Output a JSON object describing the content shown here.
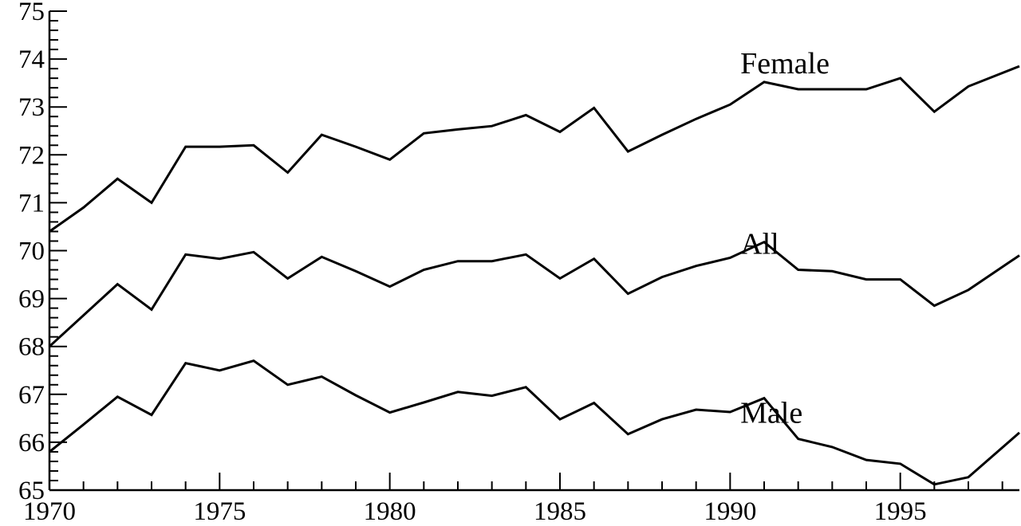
{
  "chart_data": {
    "type": "line",
    "title": "",
    "xlabel": "",
    "ylabel": "",
    "xlim": [
      1970,
      1998.5
    ],
    "ylim": [
      65,
      75
    ],
    "x_tick_labels": [
      "1970",
      "1975",
      "1980",
      "1985",
      "1990",
      "1995"
    ],
    "x_ticks": [
      1970,
      1975,
      1980,
      1985,
      1990,
      1995
    ],
    "y_tick_labels": [
      "65",
      "66",
      "67",
      "68",
      "69",
      "70",
      "71",
      "72",
      "73",
      "74",
      "75"
    ],
    "y_ticks": [
      65,
      66,
      67,
      68,
      69,
      70,
      71,
      72,
      73,
      74,
      75
    ],
    "grid": false,
    "x": [
      1970,
      1971,
      1972,
      1973,
      1974,
      1975,
      1976,
      1977,
      1978,
      1979,
      1980,
      1981,
      1982,
      1983,
      1984,
      1985,
      1986,
      1987,
      1988,
      1989,
      1990,
      1991,
      1992,
      1993,
      1994,
      1995,
      1996,
      1997,
      1998.5
    ],
    "series": [
      {
        "name": "Female",
        "values": [
          70.4,
          70.9,
          71.5,
          71.0,
          72.17,
          72.17,
          72.2,
          71.63,
          72.42,
          72.17,
          71.9,
          72.45,
          72.53,
          72.6,
          72.83,
          72.48,
          72.98,
          72.07,
          72.42,
          72.75,
          73.05,
          73.52,
          73.37,
          73.37,
          73.37,
          73.6,
          72.9,
          73.43,
          73.85
        ],
        "label_anchor": 1993
      },
      {
        "name": "All",
        "values": [
          68.0,
          68.65,
          69.3,
          68.77,
          69.92,
          69.83,
          69.97,
          69.42,
          69.87,
          69.57,
          69.25,
          69.6,
          69.78,
          69.78,
          69.92,
          69.42,
          69.83,
          69.1,
          69.45,
          69.68,
          69.85,
          70.18,
          69.6,
          69.57,
          69.4,
          69.4,
          68.85,
          69.18,
          69.9
        ],
        "label_anchor": 1993
      },
      {
        "name": "Male",
        "values": [
          65.8,
          66.37,
          66.95,
          66.57,
          67.65,
          67.5,
          67.7,
          67.2,
          67.37,
          66.98,
          66.62,
          66.83,
          67.05,
          66.97,
          67.15,
          66.48,
          66.82,
          66.17,
          66.48,
          66.68,
          66.63,
          66.92,
          66.07,
          65.9,
          65.63,
          65.55,
          65.12,
          65.27,
          66.2
        ],
        "label_anchor": 1993
      }
    ]
  }
}
